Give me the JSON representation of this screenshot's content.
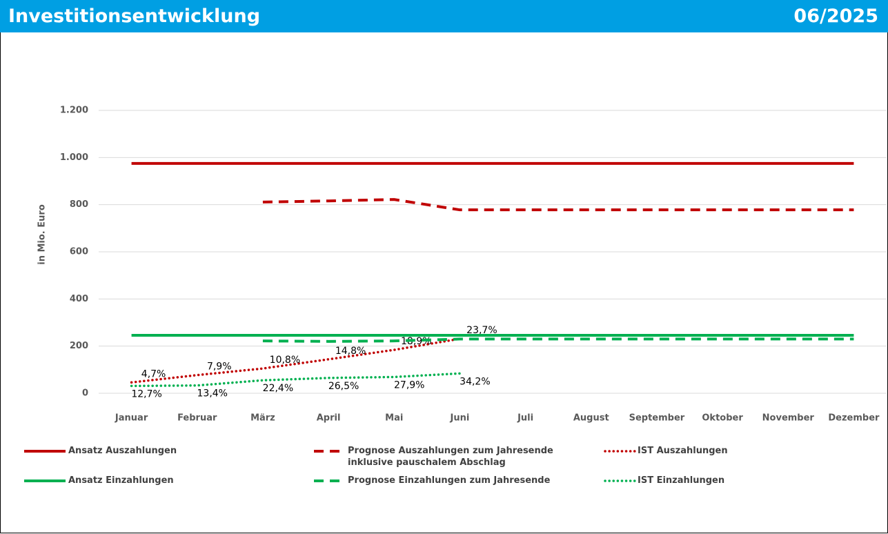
{
  "header": {
    "title": "Investitionsentwicklung",
    "date": "06/2025"
  },
  "chart_data": {
    "type": "line",
    "ylabel": "in Mio. Euro",
    "categories": [
      "Januar",
      "Februar",
      "März",
      "April",
      "Mai",
      "Juni",
      "Juli",
      "August",
      "September",
      "Oktober",
      "November",
      "Dezember"
    ],
    "ylim": [
      0,
      1200
    ],
    "yticks": [
      0,
      200,
      400,
      600,
      800,
      {
        "value": 1000,
        "label": "1.000"
      },
      {
        "value": 1200,
        "label": "1.200"
      }
    ],
    "grid": true,
    "series": [
      {
        "name": "Ansatz Auszahlungen",
        "color": "#c00000",
        "style": "solid",
        "values": [
          975,
          975,
          975,
          975,
          975,
          975,
          975,
          975,
          975,
          975,
          975,
          975
        ]
      },
      {
        "name": "Prognose Auszahlungen zum Jahresende inklusive pauschalem Abschlag",
        "color": "#c00000",
        "style": "dashed",
        "values": [
          null,
          null,
          811,
          816,
          822,
          778,
          778,
          778,
          778,
          778,
          778,
          778
        ]
      },
      {
        "name": "IST Auszahlungen",
        "color": "#c00000",
        "style": "dotted",
        "values": [
          46,
          77,
          105,
          144,
          184,
          231,
          null,
          null,
          null,
          null,
          null,
          null
        ],
        "data_labels": [
          "4,7%",
          "7,9%",
          "10,8%",
          "14,8%",
          "18,9%",
          "23,7%"
        ]
      },
      {
        "name": "Ansatz Einzahlungen",
        "color": "#00b050",
        "style": "solid",
        "values": [
          246,
          246,
          246,
          246,
          246,
          246,
          246,
          246,
          246,
          246,
          246,
          246
        ]
      },
      {
        "name": "Prognose Einzahlungen zum Jahresende",
        "color": "#00b050",
        "style": "dashed",
        "values": [
          null,
          null,
          222,
          220,
          222,
          230,
          230,
          230,
          230,
          230,
          230,
          230
        ]
      },
      {
        "name": "IST Einzahlungen",
        "color": "#00b050",
        "style": "dotted",
        "values": [
          31,
          33,
          55,
          65,
          69,
          84,
          null,
          null,
          null,
          null,
          null,
          null
        ],
        "data_labels": [
          "12,7%",
          "13,4%",
          "22,4%",
          "26,5%",
          "27,9%",
          "34,2%"
        ]
      }
    ]
  }
}
